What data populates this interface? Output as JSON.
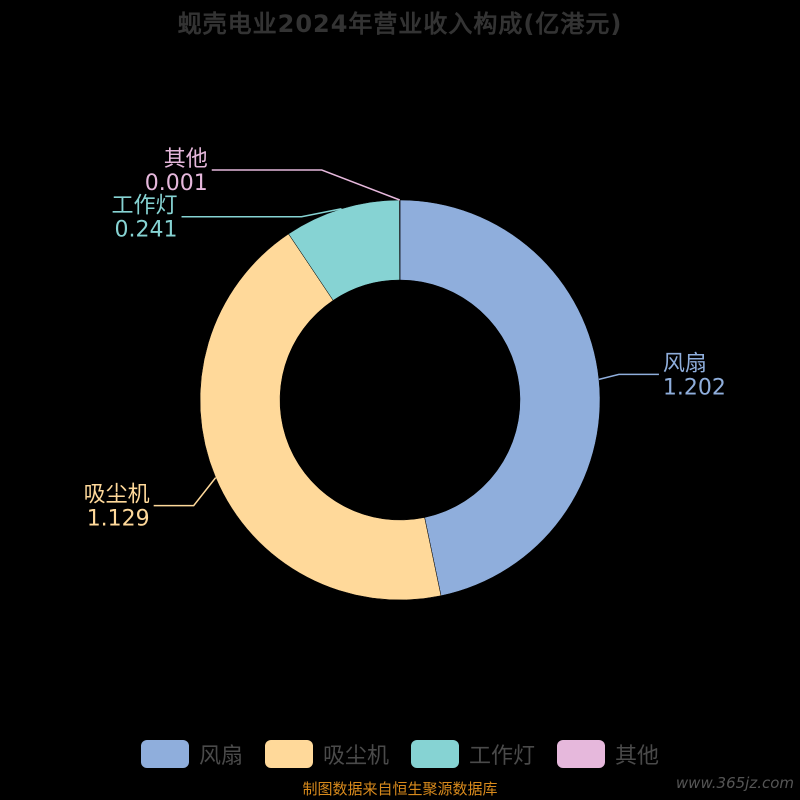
{
  "chart_data": {
    "type": "pie",
    "title": "蚬壳电业2024年营业收入构成(亿港元)",
    "categories": [
      "风扇",
      "吸尘机",
      "工作灯",
      "其他"
    ],
    "values": [
      1.202,
      1.129,
      0.241,
      0.001
    ],
    "value_labels": [
      "1.202",
      "1.129",
      "0.241",
      "0.001"
    ],
    "colors": [
      "#8FAEDC",
      "#FFD99A",
      "#86D3D3",
      "#E6B8DC"
    ],
    "donut": true,
    "legend_position": "bottom",
    "background": "#000000"
  },
  "footer": {
    "source": "制图数据来自恒生聚源数据库",
    "watermark": "www.365jz.com"
  }
}
